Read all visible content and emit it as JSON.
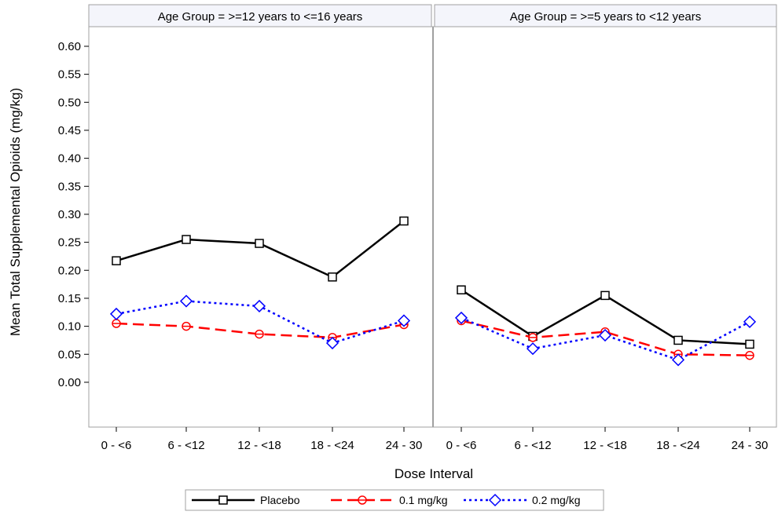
{
  "chart_data": {
    "type": "line",
    "xlabel": "Dose Interval",
    "ylabel": "Mean Total Supplemental Opioids (mg/kg)",
    "ylim": [
      -0.08,
      0.635
    ],
    "yticks": [
      "0.00",
      "0.05",
      "0.10",
      "0.15",
      "0.20",
      "0.25",
      "0.30",
      "0.35",
      "0.40",
      "0.45",
      "0.50",
      "0.55",
      "0.60"
    ],
    "categories": [
      "0 - <6",
      "6 - <12",
      "12 - <18",
      "18 - <24",
      "24 - 30"
    ],
    "grid": false,
    "legend_position": "bottom-center",
    "colors": {
      "Placebo": "#000000",
      "0.1 mg/kg": "#ff0000",
      "0.2 mg/kg": "#0000ff"
    },
    "panels": [
      {
        "title": "Age Group = >=12 years to <=16 years",
        "series": [
          {
            "name": "Placebo",
            "values": [
              0.217,
              0.255,
              0.248,
              0.188,
              0.288
            ]
          },
          {
            "name": "0.1 mg/kg",
            "values": [
              0.105,
              0.1,
              0.086,
              0.08,
              0.103
            ]
          },
          {
            "name": "0.2 mg/kg",
            "values": [
              0.122,
              0.145,
              0.136,
              0.07,
              0.11
            ]
          }
        ]
      },
      {
        "title": "Age Group = >=5 years to <12 years",
        "series": [
          {
            "name": "Placebo",
            "values": [
              0.165,
              0.082,
              0.155,
              0.075,
              0.068
            ]
          },
          {
            "name": "0.1 mg/kg",
            "values": [
              0.11,
              0.08,
              0.09,
              0.05,
              0.048
            ]
          },
          {
            "name": "0.2 mg/kg",
            "values": [
              0.115,
              0.06,
              0.084,
              0.04,
              0.108
            ]
          }
        ]
      }
    ],
    "legend": [
      {
        "name": "Placebo",
        "marker": "square",
        "dash": "solid"
      },
      {
        "name": "0.1 mg/kg",
        "marker": "circle",
        "dash": "long-dash"
      },
      {
        "name": "0.2 mg/kg",
        "marker": "diamond",
        "dash": "dotted"
      }
    ]
  }
}
